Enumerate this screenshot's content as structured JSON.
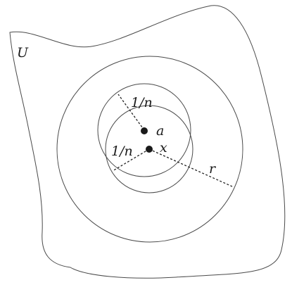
{
  "diagram": {
    "labels": {
      "set": "U",
      "center_a": "a",
      "center_x": "x",
      "radius_a": "1/n",
      "radius_x": "1/n",
      "radius_big": "r"
    },
    "colors": {
      "stroke": "#4a4a4a",
      "dashed": "#222222",
      "point": "#1a1a1a",
      "background": "#ffffff"
    }
  }
}
